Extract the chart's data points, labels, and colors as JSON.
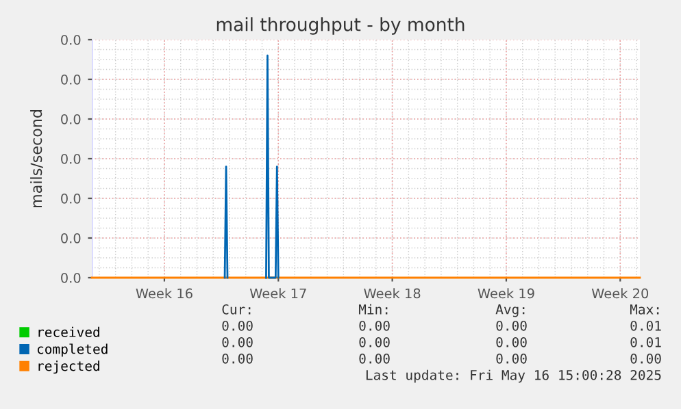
{
  "chart_data": {
    "type": "line",
    "title": "mail throughput - by month",
    "ylabel": "mails/second",
    "series": [
      {
        "name": "received",
        "color": "#00cc00"
      },
      {
        "name": "completed",
        "color": "#0066b3",
        "x": [
          "2025-04-17T17:00",
          "2025-04-17T19:00",
          "2025-04-17T21:00",
          "2025-04-18T00:00",
          "2025-04-20T06:00",
          "2025-04-20T08:00",
          "2025-04-20T10:00",
          "2025-04-20T20:00",
          "2025-04-20T22:00",
          "2025-04-21T00:00"
        ],
        "values": [
          0,
          0.0056,
          0,
          null,
          0,
          0.0112,
          0,
          0,
          0.0056,
          0
        ]
      },
      {
        "name": "rejected",
        "color": "#ff8000",
        "x": [
          "2025-04-09T13:00",
          "2025-05-13T05:00"
        ],
        "values": [
          0,
          0
        ]
      }
    ],
    "xlim": [
      "2025-04-09T13:00",
      "2025-05-13T05:00"
    ],
    "xticks": [
      {
        "value": "2025-04-14",
        "label": "Week 16"
      },
      {
        "value": "2025-04-21",
        "label": "Week 17"
      },
      {
        "value": "2025-04-28",
        "label": "Week 18"
      },
      {
        "value": "2025-05-05",
        "label": "Week 19"
      },
      {
        "value": "2025-05-12",
        "label": "Week 20"
      }
    ],
    "ylim": [
      0,
      0.012
    ],
    "yticks": [
      {
        "value": 0,
        "label": "0.0"
      },
      {
        "value": 0.002,
        "label": "0.0"
      },
      {
        "value": 0.004,
        "label": "0.0"
      },
      {
        "value": 0.006,
        "label": "0.0"
      },
      {
        "value": 0.008,
        "label": "0.0"
      },
      {
        "value": 0.01,
        "label": "0.0"
      },
      {
        "value": 0.012,
        "label": "0.0"
      }
    ],
    "grid": true,
    "legend": "bottom left",
    "marker": "none",
    "line_style": "solid",
    "annotations": [
      "Cur:",
      "Min:",
      "Avg:",
      "Max:",
      "0.00",
      "0.00",
      "0.00",
      "0.01",
      "0.00",
      "0.00",
      "0.00",
      "0.01",
      "0.00",
      "0.00",
      "0.00",
      "0.00",
      "Last update: Fri May 16 15:00:28 2025"
    ]
  }
}
